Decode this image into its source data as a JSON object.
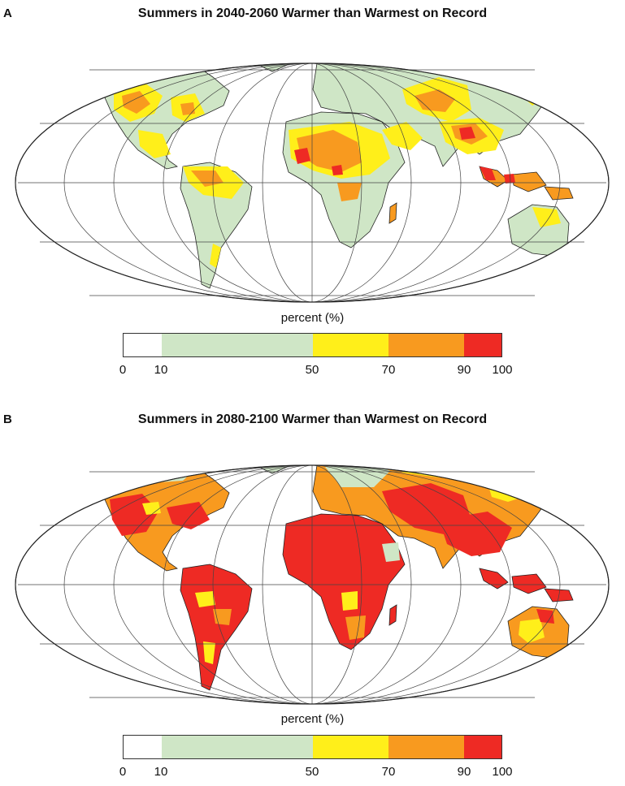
{
  "panels": [
    {
      "letter": "A",
      "title": "Summers in 2040-2060 Warmer than Warmest on Record",
      "legend_title": "percent (%)",
      "legend_ticks": [
        "0",
        "10",
        "50",
        "70",
        "90",
        "100"
      ]
    },
    {
      "letter": "B",
      "title": "Summers in 2080-2100 Warmer than Warmest on Record",
      "legend_title": "percent (%)",
      "legend_ticks": [
        "0",
        "10",
        "50",
        "70",
        "90",
        "100"
      ]
    }
  ],
  "legend_bins": [
    {
      "from": 0,
      "to": 10,
      "color": "#ffffff"
    },
    {
      "from": 10,
      "to": 50,
      "color": "#cfe6c6"
    },
    {
      "from": 50,
      "to": 70,
      "color": "#ffef1a"
    },
    {
      "from": 70,
      "to": 90,
      "color": "#f89a1f"
    },
    {
      "from": 90,
      "to": 100,
      "color": "#ee2a24"
    }
  ],
  "colors": {
    "ocean": "#ffffff",
    "outline": "#222222",
    "grid": "#444444"
  }
}
